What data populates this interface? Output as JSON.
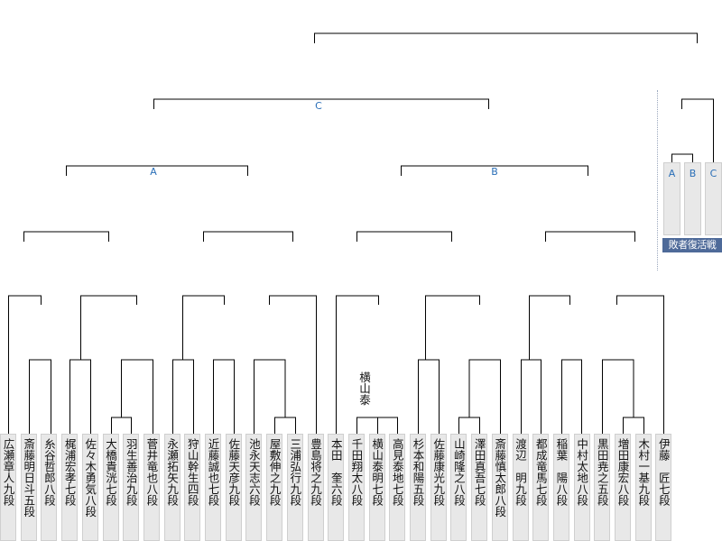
{
  "players": [
    "広瀬章人九段",
    "斎藤明日斗五段",
    "糸谷哲郎八段",
    "梶浦宏孝七段",
    "佐々木勇気八段",
    "大橋貴洸七段",
    "羽生善治九段",
    "菅井竜也八段",
    "永瀬拓矢九段",
    "狩山幹生四段",
    "近藤誠也七段",
    "佐藤天彦九段",
    "池永天志六段",
    "屋敷伸之九段",
    "三浦弘行九段",
    "豊島将之九段",
    "本田　奎六段",
    "千田翔太八段",
    "横山泰明七段",
    "高見泰地七段",
    "杉本和陽五段",
    "佐藤康光九段",
    "山崎隆之八段",
    "澤田真吾七段",
    "斎藤慎太郎八段",
    "渡辺　明九段",
    "都成竜馬七段",
    "稲葉　陽八段",
    "中村太地八段",
    "黒田尭之五段",
    "増田康宏八段",
    "木村一基九段",
    "伊藤　匠七段"
  ],
  "bracket_labels": {
    "a": "A",
    "b": "B",
    "c": "C"
  },
  "repechage": {
    "title": "敗者復活戦",
    "boxes": [
      "A",
      "B",
      "C"
    ]
  },
  "annotation": "横山泰"
}
